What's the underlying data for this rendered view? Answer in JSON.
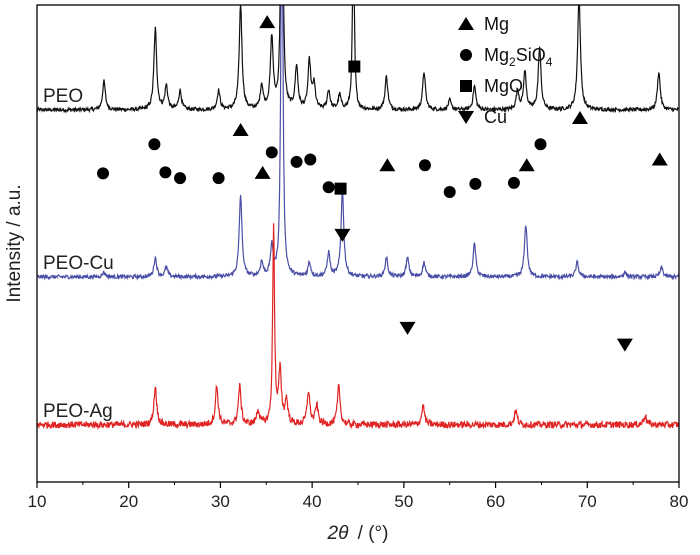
{
  "chart_data": {
    "type": "line",
    "title": "",
    "xlabel_symbol": "2θ",
    "xlabel_unit": "/ (°)",
    "ylabel": "Intensity / a.u.",
    "xlim": [
      10,
      80
    ],
    "xticks": [
      10,
      20,
      30,
      40,
      50,
      60,
      70,
      80
    ],
    "y_ticks_shown": false,
    "legend": {
      "placement": "top-right",
      "entries": [
        {
          "marker": "triangle-up",
          "label": "Mg"
        },
        {
          "marker": "circle",
          "label_parts": [
            "Mg",
            "2",
            "SiO",
            "4"
          ],
          "label": "Mg2SiO4"
        },
        {
          "marker": "square",
          "label": "MgO"
        },
        {
          "marker": "triangle-down",
          "label": "Cu"
        }
      ]
    },
    "series": [
      {
        "name": "PEO",
        "color": "#111111",
        "baseline_offset": 0.78,
        "noise": 0.004,
        "peaks": [
          {
            "x": 17.3,
            "h": 0.06
          },
          {
            "x": 22.9,
            "h": 0.17
          },
          {
            "x": 24.1,
            "h": 0.05
          },
          {
            "x": 25.6,
            "h": 0.04
          },
          {
            "x": 29.8,
            "h": 0.04
          },
          {
            "x": 32.2,
            "h": 0.22
          },
          {
            "x": 34.5,
            "h": 0.05
          },
          {
            "x": 35.6,
            "h": 0.15
          },
          {
            "x": 36.7,
            "h": 0.8
          },
          {
            "x": 38.3,
            "h": 0.09
          },
          {
            "x": 39.7,
            "h": 0.1
          },
          {
            "x": 40.2,
            "h": 0.05
          },
          {
            "x": 41.8,
            "h": 0.04
          },
          {
            "x": 43.0,
            "h": 0.03
          },
          {
            "x": 44.5,
            "h": 0.38
          },
          {
            "x": 48.1,
            "h": 0.07
          },
          {
            "x": 52.2,
            "h": 0.08
          },
          {
            "x": 55.0,
            "h": 0.02
          },
          {
            "x": 57.7,
            "h": 0.05
          },
          {
            "x": 62.4,
            "h": 0.04
          },
          {
            "x": 63.2,
            "h": 0.08
          },
          {
            "x": 64.8,
            "h": 0.13
          },
          {
            "x": 69.1,
            "h": 0.24
          },
          {
            "x": 77.8,
            "h": 0.08
          }
        ]
      },
      {
        "name": "PEO-Cu",
        "color": "#4a4ea6",
        "baseline_offset": 0.43,
        "noise": 0.004,
        "peaks": [
          {
            "x": 17.3,
            "h": 0.01
          },
          {
            "x": 22.9,
            "h": 0.04
          },
          {
            "x": 24.1,
            "h": 0.02
          },
          {
            "x": 32.2,
            "h": 0.17
          },
          {
            "x": 34.5,
            "h": 0.03
          },
          {
            "x": 35.6,
            "h": 0.06
          },
          {
            "x": 36.7,
            "h": 0.95
          },
          {
            "x": 39.7,
            "h": 0.03
          },
          {
            "x": 41.8,
            "h": 0.05
          },
          {
            "x": 43.3,
            "h": 0.18
          },
          {
            "x": 48.1,
            "h": 0.04
          },
          {
            "x": 50.4,
            "h": 0.04
          },
          {
            "x": 52.2,
            "h": 0.03
          },
          {
            "x": 57.7,
            "h": 0.07
          },
          {
            "x": 63.3,
            "h": 0.11
          },
          {
            "x": 68.9,
            "h": 0.03
          },
          {
            "x": 74.1,
            "h": 0.01
          },
          {
            "x": 78.1,
            "h": 0.02
          }
        ]
      },
      {
        "name": "PEO-Ag",
        "color": "#e02424",
        "baseline_offset": 0.12,
        "noise": 0.007,
        "peaks": [
          {
            "x": 22.9,
            "h": 0.08
          },
          {
            "x": 29.6,
            "h": 0.08
          },
          {
            "x": 32.1,
            "h": 0.08
          },
          {
            "x": 34.1,
            "h": 0.03
          },
          {
            "x": 35.8,
            "h": 0.42
          },
          {
            "x": 36.5,
            "h": 0.11
          },
          {
            "x": 37.2,
            "h": 0.05
          },
          {
            "x": 39.6,
            "h": 0.07
          },
          {
            "x": 40.5,
            "h": 0.04
          },
          {
            "x": 42.9,
            "h": 0.08
          },
          {
            "x": 52.1,
            "h": 0.04
          },
          {
            "x": 62.2,
            "h": 0.03
          },
          {
            "x": 76.3,
            "h": 0.02
          }
        ]
      }
    ],
    "phase_markers": [
      {
        "phase": "Mg",
        "shape": "triangle-up",
        "x": 35.1,
        "y": 0.964
      },
      {
        "phase": "Mg",
        "shape": "triangle-up",
        "x": 32.2,
        "y": 0.738
      },
      {
        "phase": "Mg",
        "shape": "triangle-up",
        "x": 34.6,
        "y": 0.648
      },
      {
        "phase": "Mg",
        "shape": "triangle-up",
        "x": 48.2,
        "y": 0.664
      },
      {
        "phase": "Mg",
        "shape": "triangle-up",
        "x": 63.4,
        "y": 0.664
      },
      {
        "phase": "Mg",
        "shape": "triangle-up",
        "x": 69.2,
        "y": 0.763
      },
      {
        "phase": "Mg",
        "shape": "triangle-up",
        "x": 77.9,
        "y": 0.676
      },
      {
        "phase": "Mg2SiO4",
        "shape": "circle",
        "x": 17.2,
        "y": 0.647
      },
      {
        "phase": "Mg2SiO4",
        "shape": "circle",
        "x": 22.8,
        "y": 0.708
      },
      {
        "phase": "Mg2SiO4",
        "shape": "circle",
        "x": 24.0,
        "y": 0.649
      },
      {
        "phase": "Mg2SiO4",
        "shape": "circle",
        "x": 25.6,
        "y": 0.637
      },
      {
        "phase": "Mg2SiO4",
        "shape": "circle",
        "x": 29.8,
        "y": 0.637
      },
      {
        "phase": "Mg2SiO4",
        "shape": "circle",
        "x": 35.6,
        "y": 0.691
      },
      {
        "phase": "Mg2SiO4",
        "shape": "circle",
        "x": 38.3,
        "y": 0.671
      },
      {
        "phase": "Mg2SiO4",
        "shape": "circle",
        "x": 39.8,
        "y": 0.676
      },
      {
        "phase": "Mg2SiO4",
        "shape": "circle",
        "x": 41.8,
        "y": 0.618
      },
      {
        "phase": "Mg2SiO4",
        "shape": "circle",
        "x": 52.3,
        "y": 0.664
      },
      {
        "phase": "Mg2SiO4",
        "shape": "circle",
        "x": 55.0,
        "y": 0.608
      },
      {
        "phase": "Mg2SiO4",
        "shape": "circle",
        "x": 57.8,
        "y": 0.625
      },
      {
        "phase": "Mg2SiO4",
        "shape": "circle",
        "x": 62.0,
        "y": 0.627
      },
      {
        "phase": "Mg2SiO4",
        "shape": "circle",
        "x": 64.9,
        "y": 0.708
      },
      {
        "phase": "MgO",
        "shape": "square",
        "x": 44.6,
        "y": 0.871
      },
      {
        "phase": "MgO",
        "shape": "square",
        "x": 43.1,
        "y": 0.615
      },
      {
        "phase": "Cu",
        "shape": "triangle-down",
        "x": 43.3,
        "y": 0.518
      },
      {
        "phase": "Cu",
        "shape": "triangle-down",
        "x": 50.4,
        "y": 0.323
      },
      {
        "phase": "Cu",
        "shape": "triangle-down",
        "x": 74.1,
        "y": 0.288
      }
    ]
  }
}
